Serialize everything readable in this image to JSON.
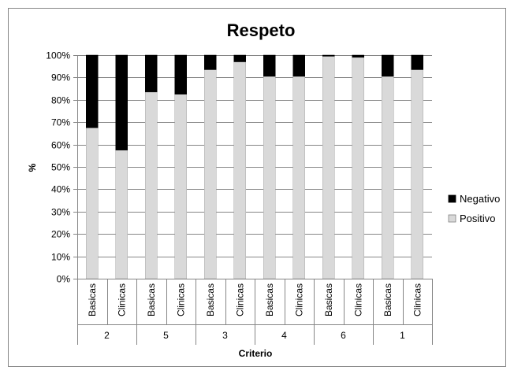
{
  "chart_data": {
    "type": "bar",
    "stacked": true,
    "title": "Respeto",
    "xlabel": "Criterio",
    "ylabel": "%",
    "ylim": [
      0,
      100
    ],
    "y_ticks": [
      "0%",
      "10%",
      "20%",
      "30%",
      "40%",
      "50%",
      "60%",
      "70%",
      "80%",
      "90%",
      "100%"
    ],
    "groups": [
      "2",
      "5",
      "3",
      "4",
      "6",
      "1"
    ],
    "categories": [
      "Basicas",
      "Clinicas",
      "Basicas",
      "Clinicas",
      "Basicas",
      "Clinicas",
      "Basicas",
      "Clinicas",
      "Basicas",
      "Clinicas",
      "Basicas",
      "Clinicas"
    ],
    "series": [
      {
        "name": "Positivo",
        "color": "#d9d9d9",
        "values": [
          67.5,
          57.5,
          83.5,
          82.5,
          93.5,
          97,
          90.5,
          90.5,
          99.5,
          99,
          90.5,
          93.5
        ]
      },
      {
        "name": "Negativo",
        "color": "#000000",
        "values": [
          32.5,
          42.5,
          16.5,
          17.5,
          6.5,
          3,
          9.5,
          9.5,
          0.5,
          1,
          9.5,
          6.5
        ]
      }
    ],
    "legend": {
      "position": "right",
      "order": [
        "Negativo",
        "Positivo"
      ]
    },
    "grid": true
  }
}
